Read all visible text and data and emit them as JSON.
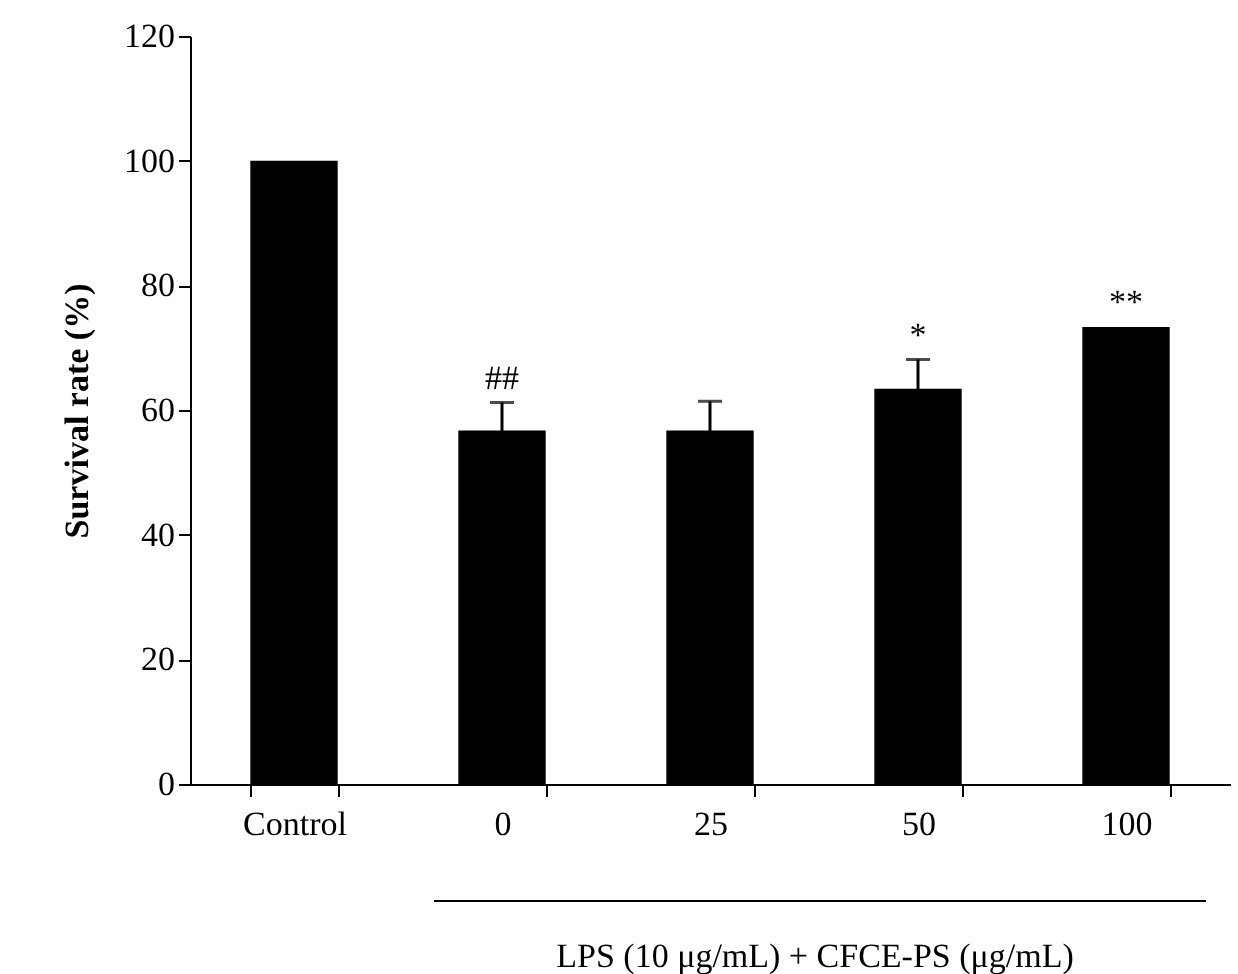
{
  "chart_data": {
    "type": "bar",
    "xlabel": "LPS (10 μg/mL) + CFCE-PS (μg/mL)",
    "ylabel": "Survival rate (%)",
    "categories": [
      "Control",
      "0",
      "25",
      "50",
      "100"
    ],
    "values": [
      100,
      56.7,
      56.7,
      63.4,
      73.3
    ],
    "errors": [
      null,
      4.5,
      4.7,
      4.7,
      null
    ],
    "color": "#000000",
    "ylim": [
      0,
      120
    ],
    "yticks": [
      0,
      20,
      40,
      60,
      80,
      100,
      120
    ],
    "grid": false,
    "annotations": [
      {
        "text": "##",
        "x": "0",
        "y": 61.2
      },
      {
        "text": "*",
        "x": "50",
        "y": 68.1
      },
      {
        "text": "**",
        "x": "100",
        "y": 73.3
      }
    ]
  }
}
